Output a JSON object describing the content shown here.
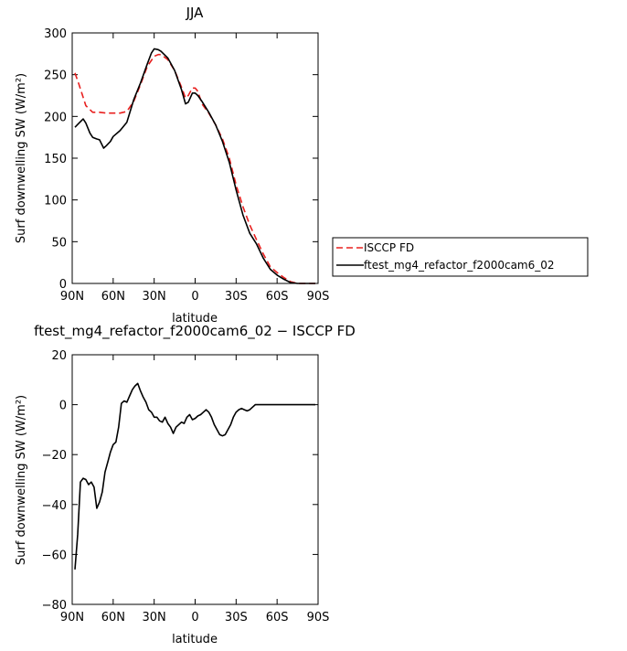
{
  "chart_data": [
    {
      "type": "line",
      "title": "JJA",
      "xlabel": "latitude",
      "ylabel": "Surf downwelling SW (W/m²)",
      "ylim": [
        0,
        300
      ],
      "xlim": [
        90,
        -90
      ],
      "xticks": [
        90,
        60,
        30,
        0,
        -30,
        -60,
        -90
      ],
      "xticklabels": [
        "90N",
        "60N",
        "30N",
        "0",
        "30S",
        "60S",
        "90S"
      ],
      "yticks": [
        0,
        50,
        100,
        150,
        200,
        250,
        300
      ],
      "yticklabels": [
        "0",
        "50",
        "100",
        "150",
        "200",
        "250",
        "300"
      ],
      "legend": "right",
      "series": [
        {
          "name": "ISCCP FD",
          "color": "#e8201f",
          "dash": "dashed",
          "x": [
            88,
            85,
            80,
            75,
            70,
            65,
            60,
            55,
            50,
            45,
            40,
            35,
            30,
            27,
            25,
            20,
            15,
            10,
            7,
            5,
            2,
            0,
            -2,
            -5,
            -10,
            -15,
            -20,
            -25,
            -30,
            -35,
            -40,
            -45,
            -50,
            -55,
            -60,
            -65,
            -70,
            -75,
            -80,
            -85,
            -88
          ],
          "y": [
            252,
            238,
            213,
            205,
            205,
            204,
            204,
            204,
            206,
            218,
            238,
            260,
            272,
            274,
            274,
            268,
            255,
            235,
            222,
            225,
            234,
            234,
            230,
            215,
            204,
            190,
            173,
            150,
            118,
            92,
            70,
            52,
            35,
            20,
            13,
            7,
            2,
            0,
            0,
            0,
            0
          ]
        },
        {
          "name": "ftest_mg4_refactor_f2000cam6_02",
          "color": "#000000",
          "dash": "solid",
          "x": [
            88,
            85,
            82,
            80,
            77,
            75,
            72,
            70,
            67,
            65,
            62,
            60,
            55,
            50,
            45,
            40,
            35,
            32,
            30,
            27,
            25,
            20,
            15,
            10,
            7,
            5,
            2,
            0,
            -2,
            -5,
            -10,
            -15,
            -20,
            -25,
            -30,
            -35,
            -40,
            -45,
            -50,
            -55,
            -60,
            -65,
            -70,
            -75,
            -80,
            -85,
            -88
          ],
          "y": [
            187,
            192,
            197,
            192,
            180,
            175,
            173,
            172,
            162,
            165,
            170,
            176,
            183,
            193,
            220,
            240,
            263,
            276,
            281,
            280,
            278,
            270,
            255,
            232,
            215,
            217,
            228,
            228,
            225,
            218,
            205,
            190,
            170,
            145,
            112,
            82,
            60,
            47,
            30,
            17,
            10,
            5,
            1,
            0,
            0,
            0,
            0
          ]
        }
      ]
    },
    {
      "type": "line",
      "title": "ftest_mg4_refactor_f2000cam6_02 − ISCCP FD",
      "xlabel": "latitude",
      "ylabel": "Surf downwelling SW (W/m²)",
      "ylim": [
        -80,
        20
      ],
      "xlim": [
        90,
        -90
      ],
      "xticks": [
        90,
        60,
        30,
        0,
        -30,
        -60,
        -90
      ],
      "xticklabels": [
        "90N",
        "60N",
        "30N",
        "0",
        "30S",
        "60S",
        "90S"
      ],
      "yticks": [
        -80,
        -60,
        -40,
        -20,
        0,
        20
      ],
      "yticklabels": [
        "−80",
        "−60",
        "−40",
        "−20",
        "0",
        "20"
      ],
      "series": [
        {
          "color": "#000000",
          "dash": "solid",
          "x": [
            88,
            86,
            84,
            82,
            80,
            78,
            76,
            74,
            72,
            70,
            68,
            66,
            64,
            62,
            60,
            58,
            56,
            54,
            52,
            50,
            48,
            46,
            44,
            42,
            40,
            38,
            36,
            34,
            32,
            30,
            28,
            26,
            24,
            22,
            20,
            18,
            16,
            14,
            12,
            10,
            8,
            6,
            4,
            2,
            0,
            -2,
            -4,
            -6,
            -8,
            -10,
            -12,
            -14,
            -16,
            -18,
            -20,
            -22,
            -24,
            -26,
            -28,
            -30,
            -32,
            -34,
            -36,
            -38,
            -40,
            -42,
            -44,
            -46,
            -48,
            -50,
            -52,
            -54,
            -56,
            -58,
            -60,
            -62,
            -64,
            -66,
            -68,
            -70,
            -75,
            -80,
            -85,
            -88
          ],
          "y": [
            -66,
            -52,
            -31,
            -29.5,
            -30,
            -32,
            -31,
            -33,
            -41.5,
            -39,
            -35,
            -27,
            -23,
            -19,
            -16,
            -15,
            -9,
            0.5,
            1.5,
            1,
            3.5,
            6,
            7.5,
            8.5,
            5.5,
            3,
            1,
            -2,
            -3,
            -5,
            -5,
            -6.5,
            -7,
            -5,
            -7.5,
            -9,
            -11.5,
            -9,
            -8,
            -7,
            -7.5,
            -5,
            -4,
            -6,
            -5.5,
            -4.5,
            -4,
            -3,
            -2,
            -3,
            -5,
            -8,
            -10,
            -12,
            -12.5,
            -12,
            -10,
            -8,
            -5,
            -3,
            -2,
            -1.5,
            -2,
            -2.5,
            -2,
            -1,
            0,
            0,
            0,
            0,
            0,
            0,
            0,
            0,
            0,
            0,
            0,
            0,
            0,
            0,
            0,
            0,
            0,
            0
          ]
        }
      ]
    }
  ]
}
